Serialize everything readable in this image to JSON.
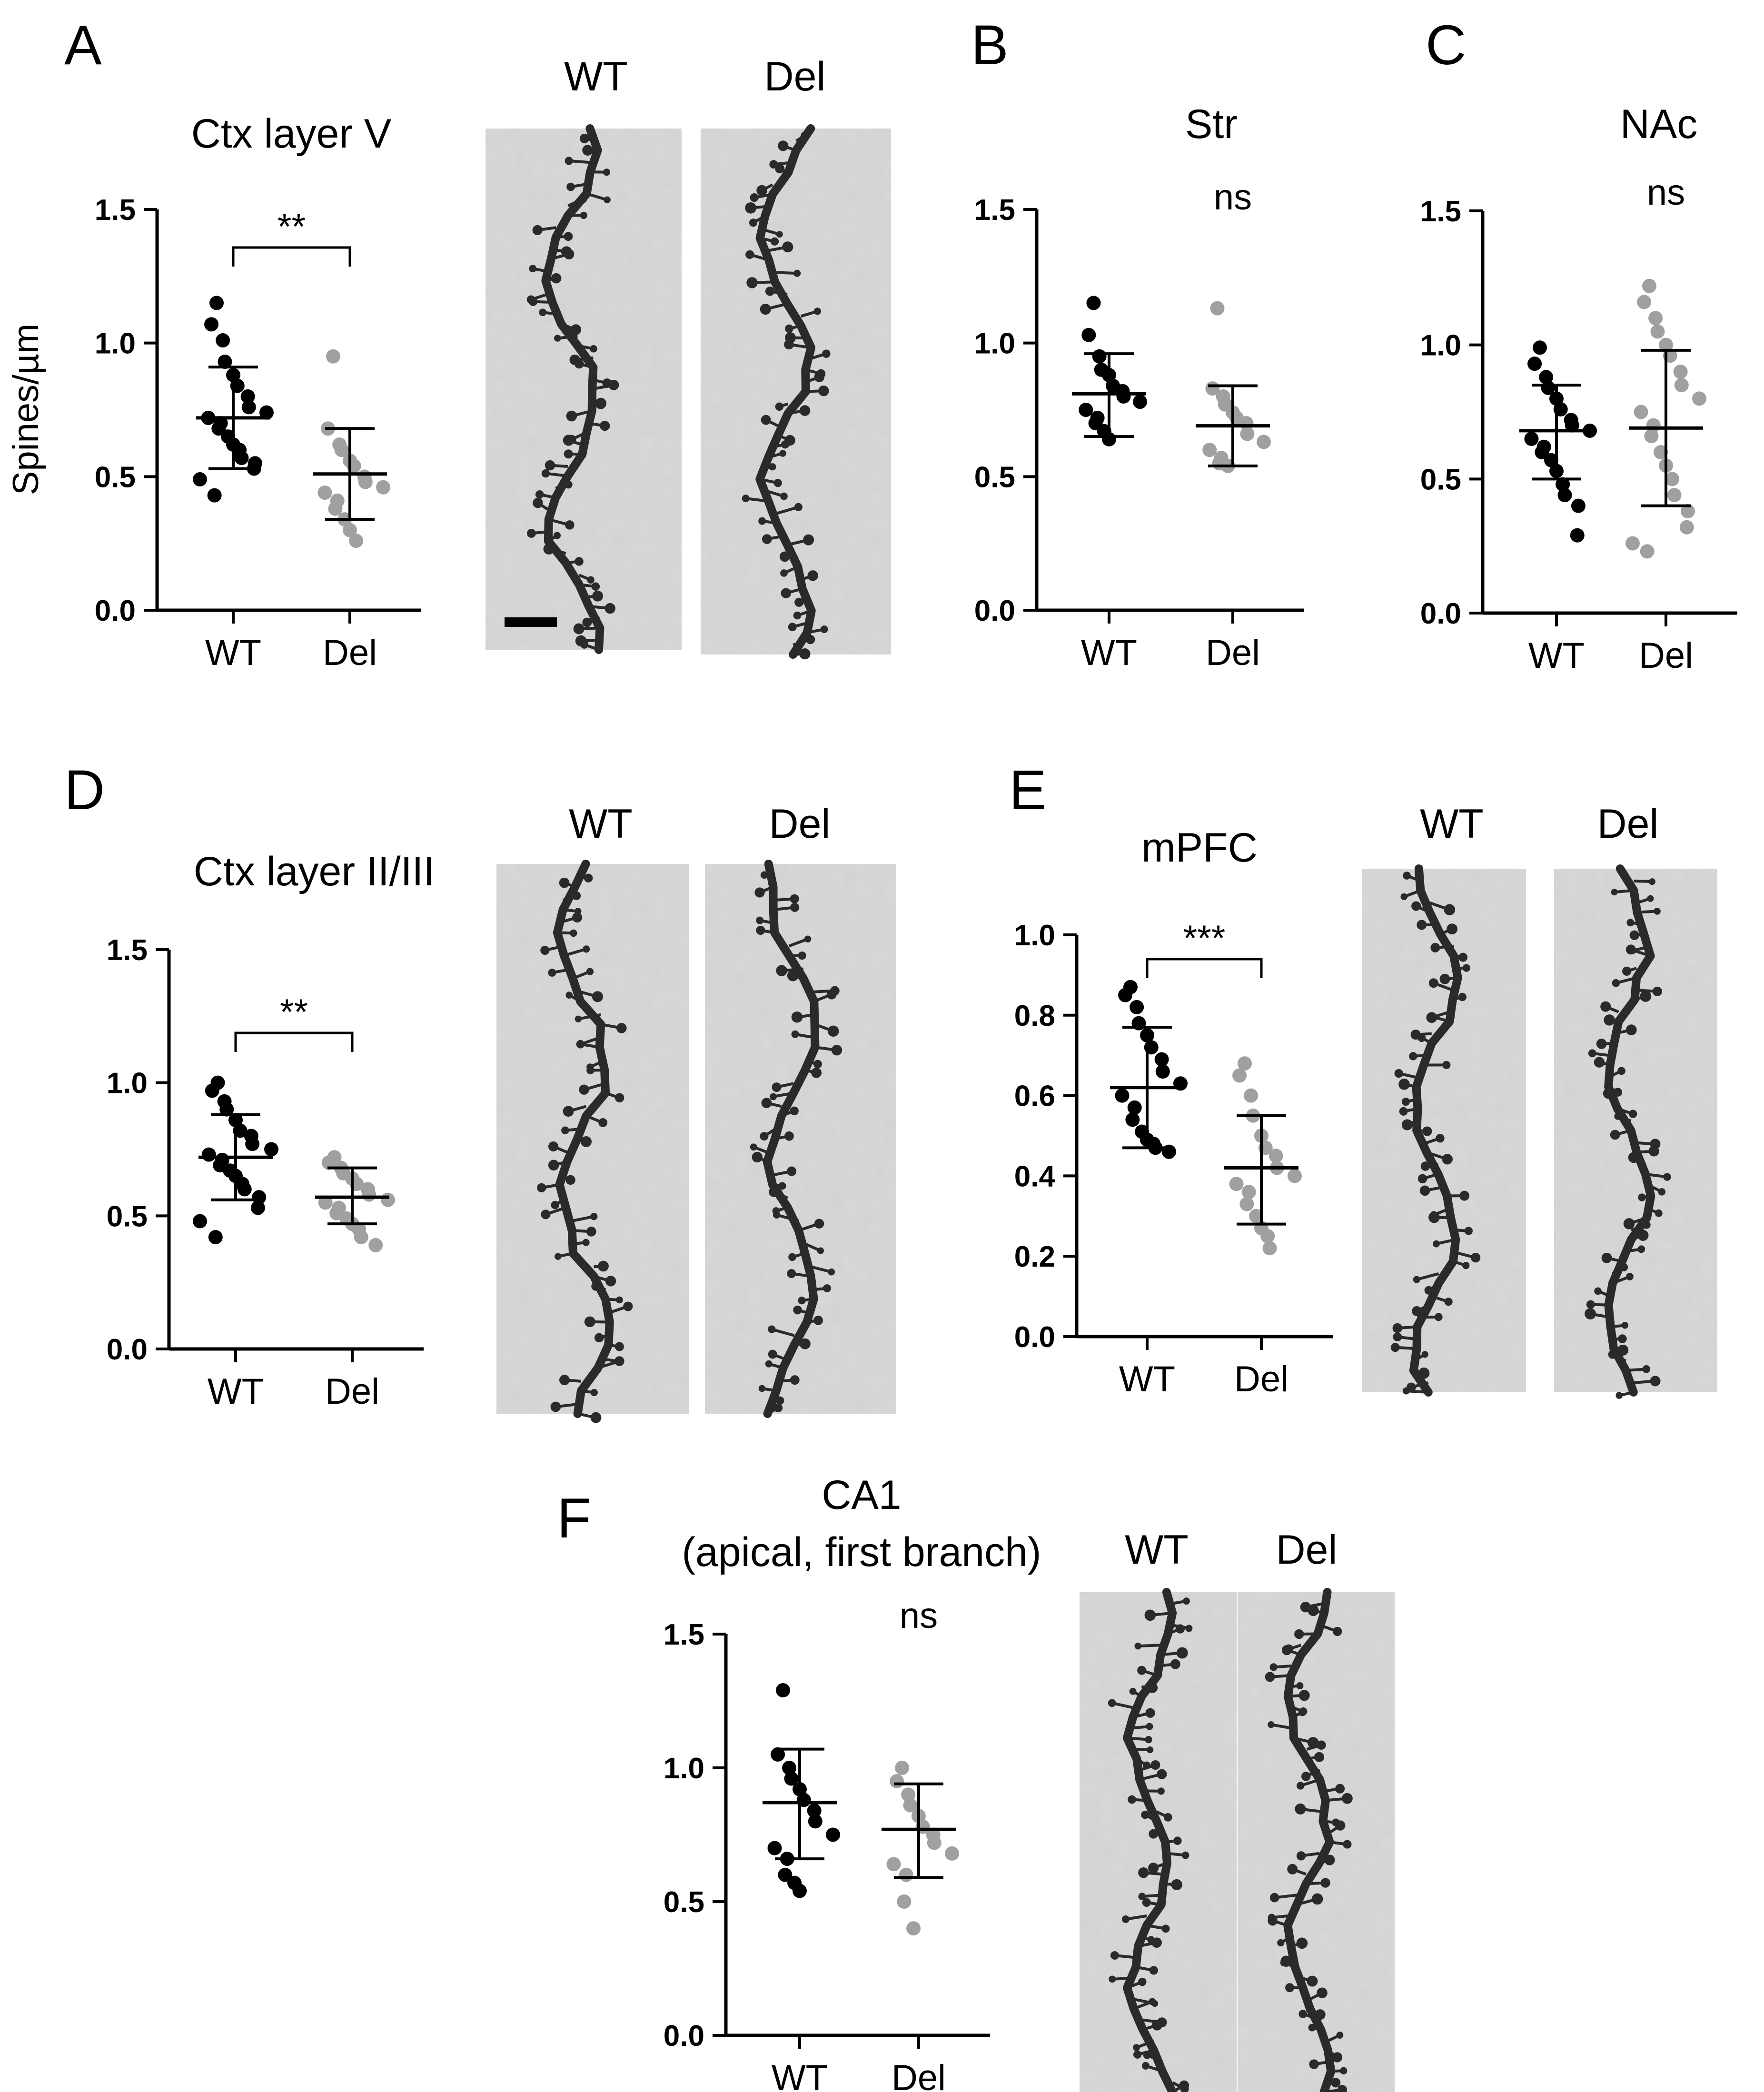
{
  "panels": [
    {
      "letter": "A",
      "title": "Ctx layer V",
      "ylabel": "Spines/µm",
      "image_labels": [
        "WT",
        "Del"
      ],
      "scale_bar": true
    },
    {
      "letter": "B",
      "title": "Str"
    },
    {
      "letter": "C",
      "title": "NAc"
    },
    {
      "letter": "D",
      "title": "Ctx layer II/III",
      "image_labels": [
        "WT",
        "Del"
      ]
    },
    {
      "letter": "E",
      "title": "mPFC",
      "image_labels": [
        "WT",
        "Del"
      ]
    },
    {
      "letter": "F",
      "title": "CA1",
      "subtitle": "(apical, first branch)",
      "image_labels": [
        "WT",
        "Del"
      ]
    }
  ],
  "colors": {
    "wt": "#000000",
    "del": "#a0a0a0",
    "micrograph_bg": "#d2d2d2",
    "dendrite": "#2a2a2a"
  },
  "chart_data": [
    {
      "panel": "A",
      "type": "scatter",
      "title": "Ctx layer V",
      "xlabel": "",
      "ylabel": "Spines/µm",
      "categories": [
        "WT",
        "Del"
      ],
      "ylim": [
        0,
        1.5
      ],
      "yticks": [
        "0.0",
        "0.5",
        "1.0",
        "1.5"
      ],
      "series": [
        {
          "name": "WT",
          "color": "#000000",
          "mean": 0.72,
          "sd_low": 0.53,
          "sd_high": 0.91,
          "values": [
            1.15,
            1.07,
            1.01,
            0.93,
            0.88,
            0.84,
            0.8,
            0.76,
            0.74,
            0.72,
            0.7,
            0.68,
            0.65,
            0.62,
            0.6,
            0.57,
            0.55,
            0.53,
            0.49,
            0.43
          ]
        },
        {
          "name": "Del",
          "color": "#a0a0a0",
          "mean": 0.51,
          "sd_low": 0.34,
          "sd_high": 0.68,
          "values": [
            0.95,
            0.68,
            0.62,
            0.6,
            0.56,
            0.54,
            0.5,
            0.48,
            0.46,
            0.44,
            0.41,
            0.38,
            0.34,
            0.3,
            0.26
          ]
        }
      ],
      "significance": "**"
    },
    {
      "panel": "B",
      "type": "scatter",
      "title": "Str",
      "xlabel": "",
      "ylabel": "",
      "categories": [
        "WT",
        "Del"
      ],
      "ylim": [
        0,
        1.5
      ],
      "yticks": [
        "0.0",
        "0.5",
        "1.0",
        "1.5"
      ],
      "series": [
        {
          "name": "WT",
          "color": "#000000",
          "mean": 0.81,
          "sd_low": 0.65,
          "sd_high": 0.96,
          "values": [
            1.15,
            1.03,
            0.95,
            0.9,
            0.88,
            0.84,
            0.82,
            0.8,
            0.78,
            0.75,
            0.72,
            0.7,
            0.67,
            0.64
          ]
        },
        {
          "name": "Del",
          "color": "#a0a0a0",
          "mean": 0.69,
          "sd_low": 0.54,
          "sd_high": 0.84,
          "values": [
            1.13,
            0.83,
            0.8,
            0.77,
            0.74,
            0.72,
            0.7,
            0.66,
            0.63,
            0.6,
            0.57,
            0.55,
            0.54
          ]
        }
      ],
      "significance": "ns"
    },
    {
      "panel": "C",
      "type": "scatter",
      "title": "NAc",
      "xlabel": "",
      "ylabel": "",
      "categories": [
        "WT",
        "Del"
      ],
      "ylim": [
        0,
        1.5
      ],
      "yticks": [
        "0.0",
        "0.5",
        "1.0",
        "1.5"
      ],
      "series": [
        {
          "name": "WT",
          "color": "#000000",
          "mean": 0.68,
          "sd_low": 0.5,
          "sd_high": 0.85,
          "values": [
            0.99,
            0.93,
            0.88,
            0.84,
            0.8,
            0.76,
            0.72,
            0.7,
            0.68,
            0.65,
            0.62,
            0.6,
            0.57,
            0.53,
            0.48,
            0.44,
            0.4,
            0.29
          ]
        },
        {
          "name": "Del",
          "color": "#a0a0a0",
          "mean": 0.69,
          "sd_low": 0.4,
          "sd_high": 0.98,
          "values": [
            1.22,
            1.16,
            1.1,
            1.05,
            1.0,
            0.96,
            0.9,
            0.85,
            0.8,
            0.75,
            0.7,
            0.66,
            0.6,
            0.55,
            0.5,
            0.44,
            0.38,
            0.32,
            0.26,
            0.23
          ]
        }
      ],
      "significance": "ns"
    },
    {
      "panel": "D",
      "type": "scatter",
      "title": "Ctx layer II/III",
      "xlabel": "",
      "ylabel": "",
      "categories": [
        "WT",
        "Del"
      ],
      "ylim": [
        0,
        1.5
      ],
      "yticks": [
        "0.0",
        "0.5",
        "1.0",
        "1.5"
      ],
      "series": [
        {
          "name": "WT",
          "color": "#000000",
          "mean": 0.72,
          "sd_low": 0.56,
          "sd_high": 0.88,
          "values": [
            1.0,
            0.97,
            0.93,
            0.9,
            0.86,
            0.82,
            0.8,
            0.77,
            0.75,
            0.73,
            0.71,
            0.69,
            0.67,
            0.65,
            0.62,
            0.6,
            0.57,
            0.53,
            0.48,
            0.42
          ]
        },
        {
          "name": "Del",
          "color": "#a0a0a0",
          "mean": 0.57,
          "sd_low": 0.47,
          "sd_high": 0.68,
          "values": [
            0.72,
            0.7,
            0.68,
            0.66,
            0.64,
            0.62,
            0.6,
            0.58,
            0.56,
            0.55,
            0.53,
            0.51,
            0.49,
            0.47,
            0.45,
            0.42,
            0.39
          ]
        }
      ],
      "significance": "**"
    },
    {
      "panel": "E",
      "type": "scatter",
      "title": "mPFC",
      "xlabel": "",
      "ylabel": "",
      "categories": [
        "WT",
        "Del"
      ],
      "ylim": [
        0,
        1.0
      ],
      "yticks": [
        "0.0",
        "0.2",
        "0.4",
        "0.6",
        "0.8",
        "1.0"
      ],
      "series": [
        {
          "name": "WT",
          "color": "#000000",
          "mean": 0.62,
          "sd_low": 0.47,
          "sd_high": 0.77,
          "values": [
            0.87,
            0.85,
            0.82,
            0.78,
            0.75,
            0.72,
            0.69,
            0.66,
            0.63,
            0.6,
            0.57,
            0.54,
            0.51,
            0.49,
            0.48,
            0.47,
            0.46
          ]
        },
        {
          "name": "Del",
          "color": "#a0a0a0",
          "mean": 0.42,
          "sd_low": 0.28,
          "sd_high": 0.55,
          "values": [
            0.68,
            0.65,
            0.6,
            0.55,
            0.5,
            0.47,
            0.45,
            0.42,
            0.4,
            0.38,
            0.36,
            0.33,
            0.3,
            0.27,
            0.25,
            0.22
          ]
        }
      ],
      "significance": "***"
    },
    {
      "panel": "F",
      "type": "scatter",
      "title": "CA1",
      "subtitle": "(apical, first branch)",
      "xlabel": "",
      "ylabel": "",
      "categories": [
        "WT",
        "Del"
      ],
      "ylim": [
        0,
        1.5
      ],
      "yticks": [
        "0.0",
        "0.5",
        "1.0",
        "1.5"
      ],
      "series": [
        {
          "name": "WT",
          "color": "#000000",
          "mean": 0.87,
          "sd_low": 0.66,
          "sd_high": 1.07,
          "values": [
            1.29,
            1.05,
            1.0,
            0.96,
            0.92,
            0.88,
            0.84,
            0.8,
            0.75,
            0.7,
            0.66,
            0.6,
            0.57,
            0.54
          ]
        },
        {
          "name": "Del",
          "color": "#a0a0a0",
          "mean": 0.77,
          "sd_low": 0.59,
          "sd_high": 0.94,
          "values": [
            1.0,
            0.95,
            0.9,
            0.86,
            0.82,
            0.78,
            0.75,
            0.72,
            0.68,
            0.64,
            0.6,
            0.5,
            0.4
          ]
        }
      ],
      "significance": "ns"
    }
  ]
}
